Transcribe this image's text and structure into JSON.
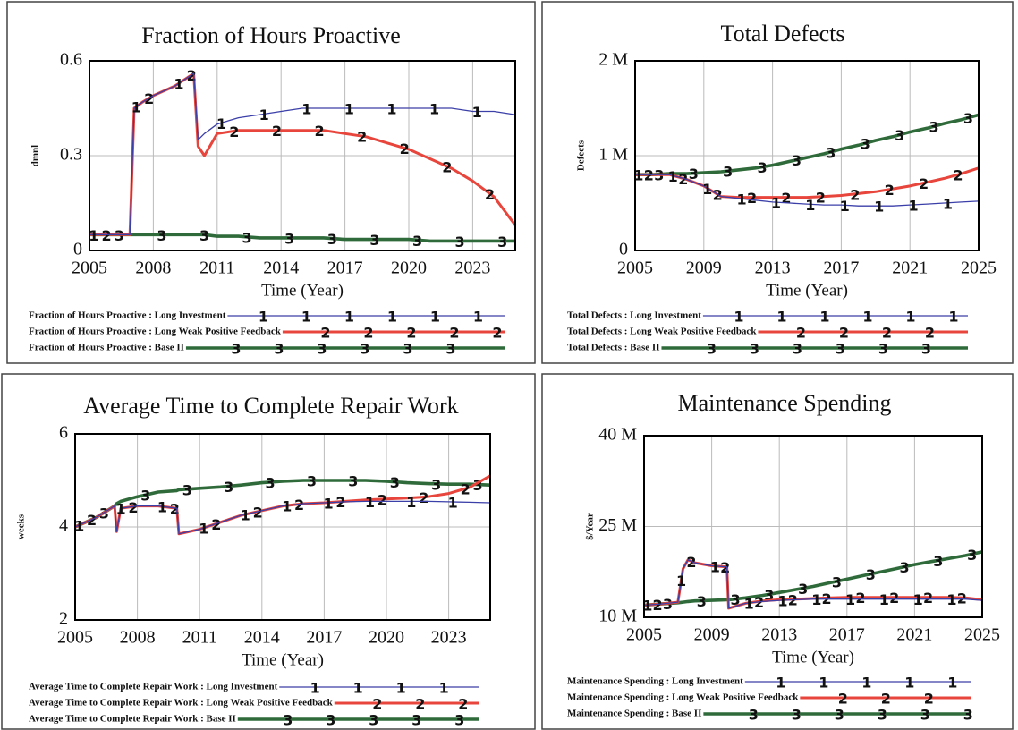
{
  "chart_data": [
    {
      "type": "line",
      "title": "Fraction of Hours Proactive",
      "xlabel": "Time (Year)",
      "ylabel": "dmnl",
      "xlim": [
        2005,
        2025
      ],
      "xticks": [
        2005,
        2008,
        2011,
        2014,
        2017,
        2020,
        2023
      ],
      "ylim": [
        0,
        0.6
      ],
      "yticks": [
        0,
        0.3,
        0.6
      ],
      "grid": true,
      "x": [
        2005,
        2006,
        2006.9,
        2007.1,
        2007.5,
        2008,
        2009,
        2009.9,
        2010.1,
        2010.4,
        2011,
        2012,
        2013,
        2014,
        2015,
        2016,
        2017,
        2018,
        2019,
        2020,
        2021,
        2022,
        2023,
        2024,
        2025
      ],
      "series": [
        {
          "name": "Fraction of Hours Proactive : Long Investment",
          "marker": "1",
          "color": "#3b3fa8",
          "values": [
            0.05,
            0.05,
            0.05,
            0.45,
            0.47,
            0.49,
            0.52,
            0.56,
            0.35,
            0.37,
            0.4,
            0.42,
            0.43,
            0.44,
            0.45,
            0.45,
            0.45,
            0.45,
            0.45,
            0.45,
            0.45,
            0.45,
            0.44,
            0.44,
            0.43
          ]
        },
        {
          "name": "Fraction of Hours Proactive : Long Weak Positive Feedback",
          "marker": "2",
          "color": "#e8453c",
          "values": [
            0.05,
            0.05,
            0.05,
            0.45,
            0.47,
            0.49,
            0.52,
            0.56,
            0.33,
            0.3,
            0.37,
            0.38,
            0.38,
            0.38,
            0.38,
            0.38,
            0.37,
            0.36,
            0.34,
            0.32,
            0.29,
            0.26,
            0.22,
            0.17,
            0.08
          ]
        },
        {
          "name": "Fraction of Hours Proactive : Base II",
          "marker": "3",
          "color": "#2f6b3a",
          "values": [
            0.05,
            0.05,
            0.05,
            0.05,
            0.05,
            0.05,
            0.05,
            0.05,
            0.05,
            0.05,
            0.045,
            0.045,
            0.04,
            0.04,
            0.04,
            0.04,
            0.035,
            0.035,
            0.035,
            0.035,
            0.03,
            0.03,
            0.03,
            0.03,
            0.03
          ]
        }
      ]
    },
    {
      "type": "line",
      "title": "Total Defects",
      "xlabel": "Time (Year)",
      "ylabel": "Defects",
      "xlim": [
        2005,
        2025
      ],
      "xticks": [
        2005,
        2009,
        2013,
        2017,
        2021,
        2025
      ],
      "ylim": [
        0,
        2000000
      ],
      "yticks": [
        0,
        {
          "value": 1000000,
          "label": "1 M"
        },
        {
          "value": 2000000,
          "label": "2 M"
        }
      ],
      "grid": true,
      "x": [
        2005,
        2006,
        2007,
        2008,
        2009,
        2010,
        2011,
        2012,
        2013,
        2014,
        2015,
        2016,
        2017,
        2018,
        2019,
        2020,
        2021,
        2022,
        2023,
        2024,
        2025
      ],
      "series": [
        {
          "name": "Total Defects : Long Investment",
          "marker": "1",
          "color": "#3b3fa8",
          "values": [
            800000,
            800000,
            800000,
            750000,
            680000,
            570000,
            550000,
            530000,
            510000,
            500000,
            490000,
            480000,
            480000,
            470000,
            470000,
            470000,
            480000,
            490000,
            500000,
            510000,
            520000
          ]
        },
        {
          "name": "Total Defects : Long Weak Positive Feedback",
          "marker": "2",
          "color": "#e8453c",
          "values": [
            800000,
            800000,
            800000,
            750000,
            680000,
            570000,
            560000,
            560000,
            560000,
            560000,
            560000,
            570000,
            580000,
            600000,
            620000,
            650000,
            680000,
            720000,
            760000,
            810000,
            870000
          ]
        },
        {
          "name": "Total Defects : Base II",
          "marker": "3",
          "color": "#2f6b3a",
          "values": [
            800000,
            800000,
            810000,
            810000,
            820000,
            830000,
            850000,
            870000,
            900000,
            940000,
            980000,
            1020000,
            1070000,
            1110000,
            1160000,
            1200000,
            1250000,
            1290000,
            1340000,
            1380000,
            1430000
          ]
        }
      ]
    },
    {
      "type": "line",
      "title": "Average Time to Complete Repair Work",
      "xlabel": "Time (Year)",
      "ylabel": "weeks",
      "xlim": [
        2005,
        2025
      ],
      "xticks": [
        2005,
        2008,
        2011,
        2014,
        2017,
        2020,
        2023
      ],
      "ylim": [
        2,
        6
      ],
      "yticks": [
        2,
        4,
        6
      ],
      "grid": true,
      "x": [
        2005,
        2006,
        2006.9,
        2007.0,
        2007.2,
        2008,
        2009,
        2009.9,
        2010.0,
        2011,
        2012,
        2013,
        2014,
        2015,
        2016,
        2017,
        2018,
        2019,
        2020,
        2021,
        2022,
        2023,
        2024,
        2025
      ],
      "series": [
        {
          "name": "Average Time to Complete Repair Work : Long Investment",
          "marker": "1",
          "color": "#3b3fa8",
          "values": [
            4.0,
            4.2,
            4.45,
            3.9,
            4.4,
            4.45,
            4.45,
            4.4,
            3.85,
            3.95,
            4.1,
            4.25,
            4.35,
            4.45,
            4.5,
            4.52,
            4.54,
            4.55,
            4.55,
            4.55,
            4.55,
            4.54,
            4.53,
            4.52
          ]
        },
        {
          "name": "Average Time to Complete Repair Work : Long Weak Positive Feedback",
          "marker": "2",
          "color": "#e8453c",
          "values": [
            4.0,
            4.2,
            4.45,
            3.9,
            4.4,
            4.45,
            4.45,
            4.4,
            3.85,
            3.95,
            4.1,
            4.25,
            4.35,
            4.45,
            4.5,
            4.52,
            4.55,
            4.58,
            4.6,
            4.62,
            4.65,
            4.72,
            4.85,
            5.1
          ]
        },
        {
          "name": "Average Time to Complete Repair Work : Base II",
          "marker": "3",
          "color": "#2f6b3a",
          "values": [
            4.0,
            4.2,
            4.45,
            4.5,
            4.55,
            4.65,
            4.75,
            4.78,
            4.8,
            4.83,
            4.86,
            4.9,
            4.95,
            4.98,
            5.0,
            5.0,
            5.0,
            5.0,
            4.98,
            4.95,
            4.93,
            4.92,
            4.92,
            4.9
          ]
        }
      ]
    },
    {
      "type": "line",
      "title": "Maintenance Spending",
      "xlabel": "Time (Year)",
      "ylabel": "$/Year",
      "xlim": [
        2005,
        2025
      ],
      "xticks": [
        2005,
        2009,
        2013,
        2017,
        2021,
        2025
      ],
      "ylim": [
        10000000,
        40000000
      ],
      "yticks": [
        {
          "value": 10000000,
          "label": "10 M"
        },
        {
          "value": 25000000,
          "label": "25 M"
        },
        {
          "value": 40000000,
          "label": "40 M"
        }
      ],
      "grid": true,
      "x": [
        2005,
        2006,
        2007,
        2007.3,
        2007.6,
        2008,
        2009,
        2009.9,
        2010,
        2011,
        2012,
        2013,
        2014,
        2015,
        2016,
        2017,
        2018,
        2019,
        2020,
        2021,
        2022,
        2023,
        2024,
        2025
      ],
      "series": [
        {
          "name": "Maintenance Spending : Long Investment",
          "marker": "1",
          "color": "#3b3fa8",
          "values": [
            12000000,
            12200000,
            12500000,
            18000000,
            19500000,
            19000000,
            18500000,
            18300000,
            11500000,
            12300000,
            12600000,
            12800000,
            12900000,
            13000000,
            13000000,
            13000000,
            13000000,
            13000000,
            13000000,
            13000000,
            13000000,
            13000000,
            13000000,
            12800000
          ]
        },
        {
          "name": "Maintenance Spending : Long Weak Positive Feedback",
          "marker": "2",
          "color": "#e8453c",
          "values": [
            12000000,
            12200000,
            12500000,
            18000000,
            19500000,
            19000000,
            18500000,
            18300000,
            11500000,
            12300000,
            12700000,
            12900000,
            13000000,
            13100000,
            13200000,
            13300000,
            13300000,
            13300000,
            13300000,
            13300000,
            13300000,
            13300000,
            13200000,
            12900000
          ]
        },
        {
          "name": "Maintenance Spending : Base II",
          "marker": "3",
          "color": "#2f6b3a",
          "values": [
            12000000,
            12200000,
            12400000,
            12500000,
            12600000,
            12700000,
            12800000,
            12900000,
            12900000,
            13200000,
            13600000,
            14100000,
            14600000,
            15100000,
            15700000,
            16300000,
            16900000,
            17500000,
            18100000,
            18700000,
            19200000,
            19700000,
            20200000,
            20800000
          ]
        }
      ]
    }
  ]
}
